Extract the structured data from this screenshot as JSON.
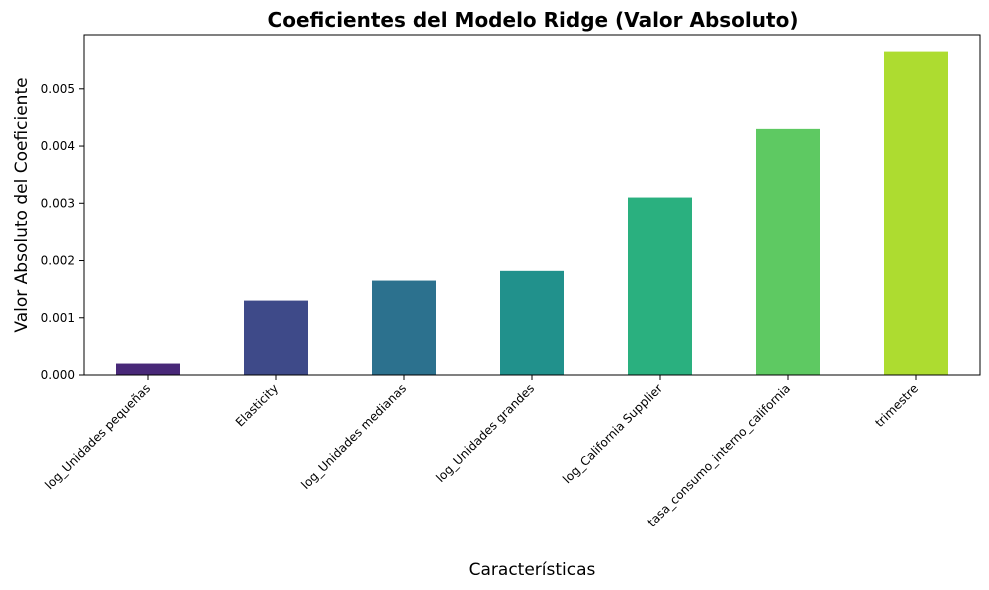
{
  "chart_data": {
    "type": "bar",
    "title": "Coeficientes del Modelo Ridge (Valor Absoluto)",
    "xlabel": "Características",
    "ylabel": "Valor Absoluto del Coeficiente",
    "categories": [
      "log_Unidades pequeñas",
      "Elasticity",
      "log_Unidades medianas",
      "log_Unidades grandes",
      "log_California Supplier",
      "tasa_consumo_interno_california",
      "trimestre"
    ],
    "values": [
      0.0002,
      0.0013,
      0.00165,
      0.00182,
      0.0031,
      0.0043,
      0.00565
    ],
    "colors": [
      "#482878",
      "#3e4a89",
      "#2c718e",
      "#21918c",
      "#2ab07f",
      "#5ec962",
      "#addc30"
    ],
    "ylim": [
      0,
      0.00594
    ],
    "yticks": [
      "0.000",
      "0.001",
      "0.002",
      "0.003",
      "0.004",
      "0.005"
    ],
    "grid": false,
    "legend": "none"
  }
}
